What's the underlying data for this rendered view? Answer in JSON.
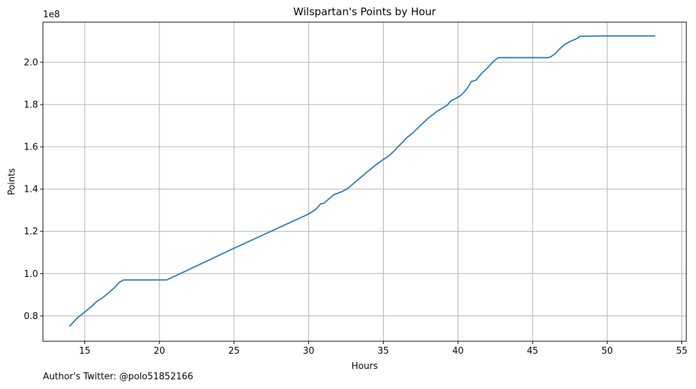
{
  "chart_data": {
    "type": "line",
    "title": "Wilspartan's Points by Hour",
    "xlabel": "Hours",
    "ylabel": "Points",
    "y_offset_label": "1e8",
    "xlim": [
      12.2,
      55.3
    ],
    "ylim": [
      0.68,
      2.19
    ],
    "x_ticks": [
      15,
      20,
      25,
      30,
      35,
      40,
      45,
      50,
      55
    ],
    "y_ticks": [
      0.8,
      1.0,
      1.2,
      1.4,
      1.6,
      1.8,
      2.0
    ],
    "y_tick_labels": [
      "0.8",
      "1.0",
      "1.2",
      "1.4",
      "1.6",
      "1.8",
      "2.0"
    ],
    "grid": true,
    "line_color": "#1f77b4",
    "grid_color": "#b0b0b0",
    "series": [
      {
        "x": [
          14.0,
          14.5,
          14.8,
          15.2,
          15.5,
          15.8,
          16.2,
          16.6,
          17.0,
          17.3,
          17.6,
          18.5,
          20.0,
          20.5,
          25.0,
          30.0,
          30.5,
          30.8,
          31.0,
          31.3,
          31.7,
          32.2,
          32.6,
          33.0,
          33.5,
          34.0,
          34.5,
          35.0,
          35.3,
          35.7,
          36.0,
          36.3,
          36.6,
          36.8,
          37.0,
          37.3,
          37.6,
          38.0,
          38.3,
          38.6,
          39.0,
          39.3,
          39.5,
          39.8,
          40.2,
          40.6,
          40.9,
          41.2,
          41.6,
          42.0,
          42.4,
          42.7,
          43.0,
          44.0,
          45.0,
          46.0,
          46.2,
          46.5,
          46.8,
          47.1,
          47.5,
          47.9,
          48.2,
          50.0,
          53.2
        ],
        "y": [
          0.752,
          0.79,
          0.807,
          0.83,
          0.847,
          0.868,
          0.886,
          0.909,
          0.934,
          0.958,
          0.97,
          0.97,
          0.97,
          0.97,
          1.12,
          1.282,
          1.305,
          1.33,
          1.332,
          1.35,
          1.374,
          1.387,
          1.402,
          1.426,
          1.456,
          1.486,
          1.514,
          1.54,
          1.553,
          1.578,
          1.601,
          1.622,
          1.645,
          1.655,
          1.668,
          1.688,
          1.708,
          1.735,
          1.751,
          1.768,
          1.785,
          1.798,
          1.816,
          1.827,
          1.843,
          1.874,
          1.909,
          1.915,
          1.948,
          1.975,
          2.006,
          2.022,
          2.022,
          2.022,
          2.022,
          2.022,
          2.025,
          2.04,
          2.062,
          2.082,
          2.098,
          2.11,
          2.123,
          2.125,
          2.125
        ]
      }
    ]
  },
  "footer": {
    "text": "Author's Twitter: @polo51852166"
  }
}
